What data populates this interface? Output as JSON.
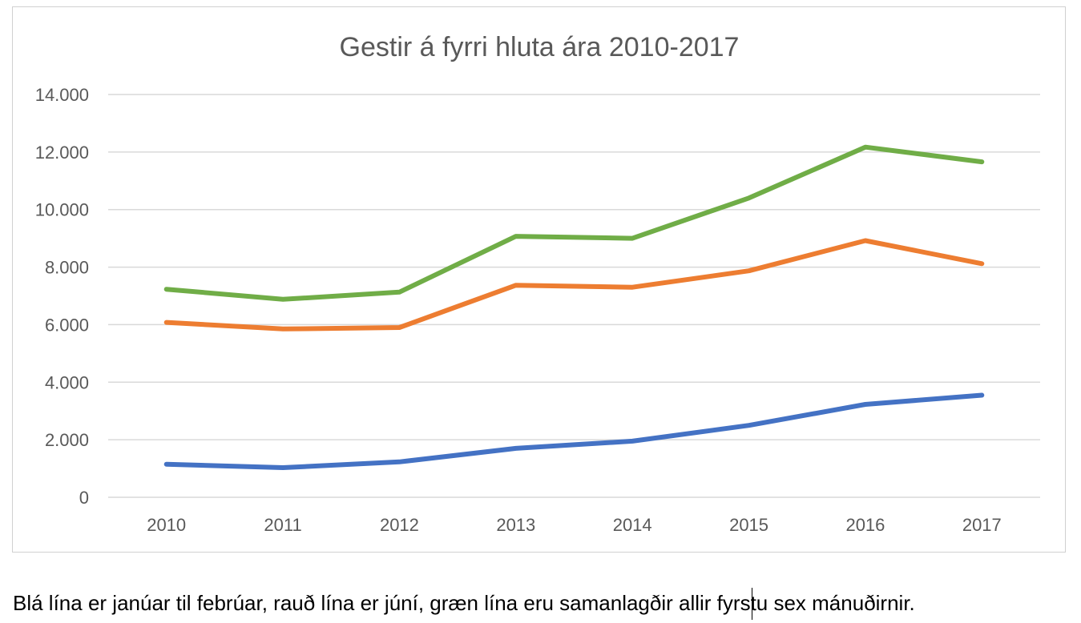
{
  "chart_data": {
    "type": "line",
    "title": "Gestir á fyrri hluta ára 2010-2017",
    "xlabel": "",
    "ylabel": "",
    "categories": [
      "2010",
      "2011",
      "2012",
      "2013",
      "2014",
      "2015",
      "2016",
      "2017"
    ],
    "y_ticks": [
      "0",
      "2.000",
      "4.000",
      "6.000",
      "8.000",
      "10.000",
      "12.000",
      "14.000"
    ],
    "ylim": [
      0,
      14000
    ],
    "grid": true,
    "legend": "none",
    "series": [
      {
        "color": "#4472C4",
        "values": [
          1150,
          1030,
          1230,
          1700,
          1950,
          2500,
          3230,
          3550
        ]
      },
      {
        "color": "#ED7D31",
        "values": [
          6080,
          5850,
          5900,
          7370,
          7300,
          7870,
          8920,
          8120
        ]
      },
      {
        "color": "#70AD47",
        "values": [
          7230,
          6880,
          7130,
          9070,
          9000,
          10400,
          12170,
          11660
        ]
      }
    ]
  },
  "caption": "Blá lína er janúar til febrúar, rauð lína er júní, græn lína eru samanlagðir allir fyrstu sex mánuðirnir."
}
